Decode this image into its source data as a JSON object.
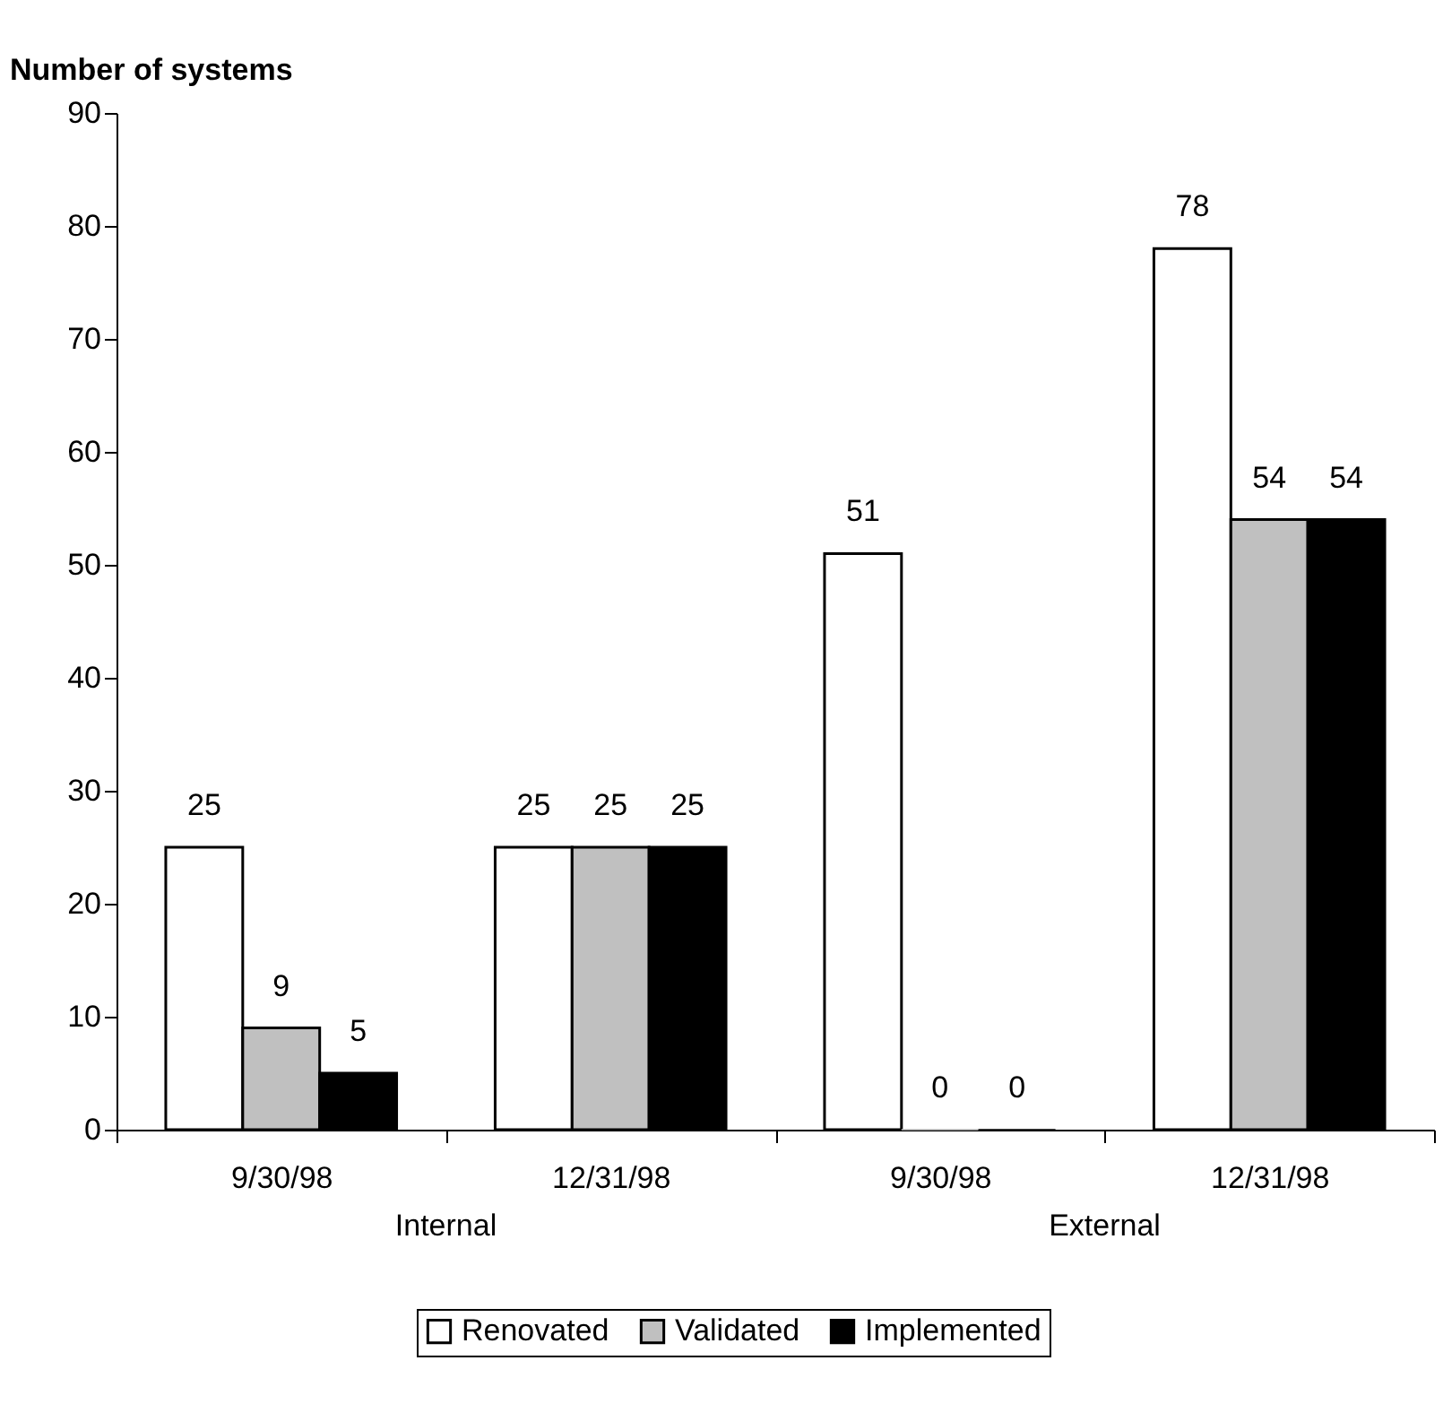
{
  "chart_data": {
    "type": "bar",
    "ylabel": "Number of systems",
    "categories": [
      "9/30/98",
      "12/31/98",
      "9/30/98",
      "12/31/98"
    ],
    "series": [
      {
        "name": "Renovated",
        "color": "#ffffff",
        "values": [
          25,
          25,
          51,
          78
        ]
      },
      {
        "name": "Validated",
        "color": "#c0c0c0",
        "values": [
          9,
          25,
          0,
          54
        ]
      },
      {
        "name": "Implemented",
        "color": "#000000",
        "values": [
          5,
          25,
          0,
          54
        ]
      }
    ],
    "annotations": [
      "Internal",
      "External"
    ],
    "ylim": [
      0,
      90
    ],
    "yticks": [
      0,
      10,
      20,
      30,
      40,
      50,
      60,
      70,
      80,
      90
    ],
    "data_labels": true,
    "grid": false,
    "legend": "bottom"
  }
}
